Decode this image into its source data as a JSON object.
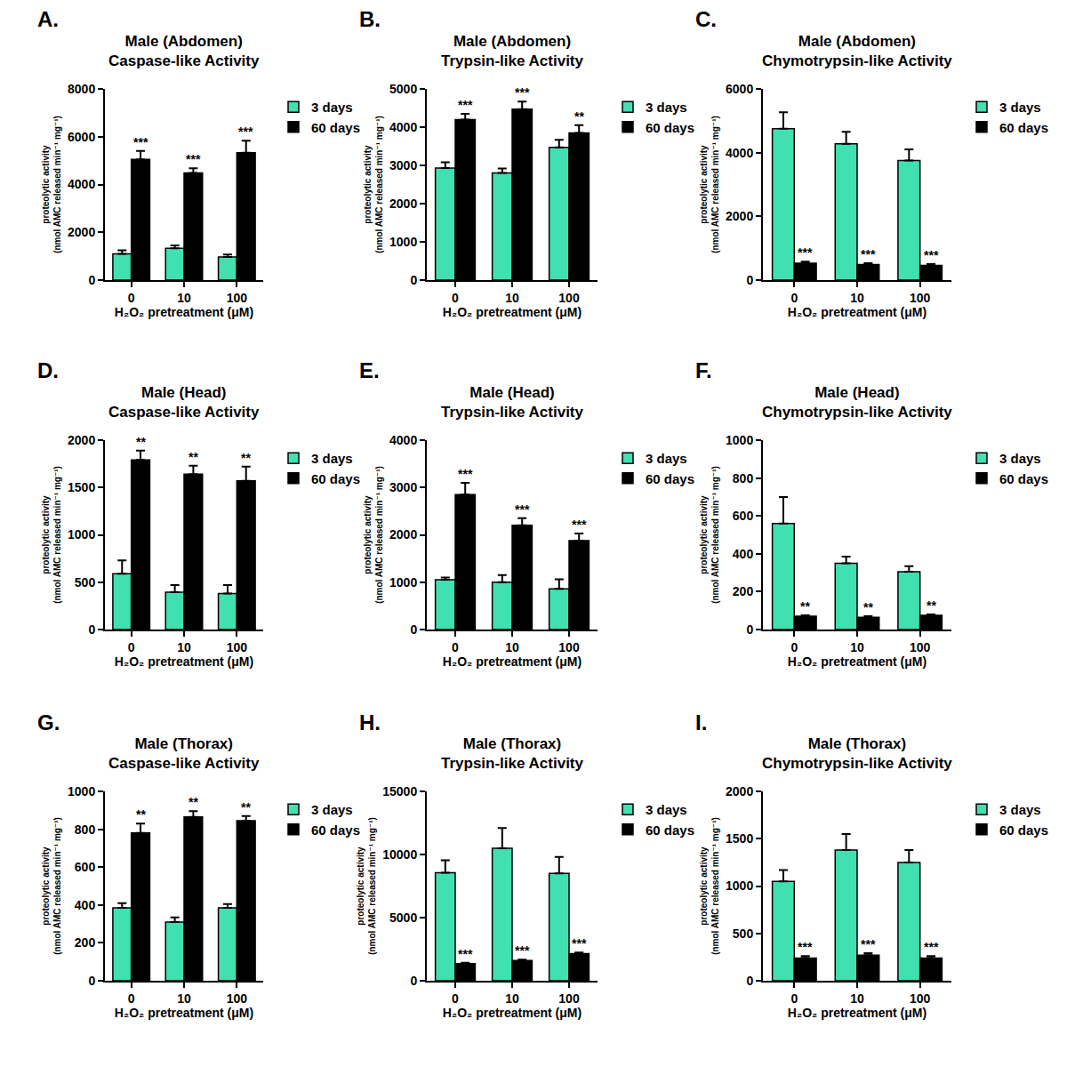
{
  "chart_data": [
    {
      "type": "bar",
      "label": "A.",
      "title": "Male (Abdomen)\nCaspase-like Activity",
      "xlabel": "H₂O₂ pretreatment (μM)",
      "ylabel": "proteolytic activity\n(nmol AMC released min⁻¹ mg⁻¹)",
      "categories": [
        "0",
        "10",
        "100"
      ],
      "series": [
        {
          "name": "3 days",
          "color": "#40e0b0",
          "values": [
            1100,
            1330,
            970
          ],
          "errors": [
            150,
            120,
            100
          ]
        },
        {
          "name": "60 days",
          "color": "#000000",
          "values": [
            5050,
            4480,
            5330
          ],
          "errors": [
            350,
            200,
            500
          ],
          "annotations": [
            "***",
            "***",
            "***"
          ]
        }
      ],
      "ylim": [
        0,
        8000
      ],
      "yticks": [
        0,
        2000,
        4000,
        6000,
        8000
      ],
      "legend": "right"
    },
    {
      "type": "bar",
      "label": "B.",
      "title": "Male (Abdomen)\nTrypsin-like Activity",
      "xlabel": "H₂O₂ pretreatment (μM)",
      "ylabel": "proteolytic activity\n(nmol AMC released min⁻¹ mg⁻¹)",
      "categories": [
        "0",
        "10",
        "100"
      ],
      "series": [
        {
          "name": "3 days",
          "color": "#40e0b0",
          "values": [
            2930,
            2800,
            3470
          ],
          "errors": [
            150,
            120,
            200
          ]
        },
        {
          "name": "60 days",
          "color": "#000000",
          "values": [
            4200,
            4470,
            3850
          ],
          "errors": [
            150,
            200,
            200
          ],
          "annotations": [
            "***",
            "***",
            "**"
          ]
        }
      ],
      "ylim": [
        0,
        5000
      ],
      "yticks": [
        0,
        1000,
        2000,
        3000,
        4000,
        5000
      ],
      "legend": "right"
    },
    {
      "type": "bar",
      "label": "C.",
      "title": "Male (Abdomen)\nChymotrypsin-like Activity",
      "xlabel": "H₂O₂ pretreatment (μM)",
      "ylabel": "proteolytic activity\n(nmol AMC released min⁻¹ mg⁻¹)",
      "categories": [
        "0",
        "10",
        "100"
      ],
      "series": [
        {
          "name": "3 days",
          "color": "#40e0b0",
          "values": [
            4750,
            4280,
            3750
          ],
          "errors": [
            520,
            370,
            350
          ]
        },
        {
          "name": "60 days",
          "color": "#000000",
          "values": [
            530,
            490,
            460
          ],
          "errors": [
            50,
            40,
            40
          ],
          "annotations": [
            "***",
            "***",
            "***"
          ]
        }
      ],
      "ylim": [
        0,
        6000
      ],
      "yticks": [
        0,
        2000,
        4000,
        6000
      ],
      "legend": "right"
    },
    {
      "type": "bar",
      "label": "D.",
      "title": "Male (Head)\nCaspase-like Activity",
      "xlabel": "H₂O₂ pretreatment (μM)",
      "ylabel": "proteolytic activity\n(nmol AMC released min⁻¹ mg⁻¹)",
      "categories": [
        "0",
        "10",
        "100"
      ],
      "series": [
        {
          "name": "3 days",
          "color": "#40e0b0",
          "values": [
            590,
            395,
            380
          ],
          "errors": [
            140,
            75,
            90
          ]
        },
        {
          "name": "60 days",
          "color": "#000000",
          "values": [
            1790,
            1640,
            1570
          ],
          "errors": [
            100,
            90,
            150
          ],
          "annotations": [
            "**",
            "**",
            "**"
          ]
        }
      ],
      "ylim": [
        0,
        2000
      ],
      "yticks": [
        0,
        500,
        1000,
        1500,
        2000
      ],
      "legend": "right"
    },
    {
      "type": "bar",
      "label": "E.",
      "title": "Male (Head)\nTrypsin-like Activity",
      "xlabel": "H₂O₂ pretreatment (μM)",
      "ylabel": "proteolytic activity\n(nmol AMC released min⁻¹ mg⁻¹)",
      "categories": [
        "0",
        "10",
        "100"
      ],
      "series": [
        {
          "name": "3 days",
          "color": "#40e0b0",
          "values": [
            1050,
            1000,
            860
          ],
          "errors": [
            50,
            150,
            200
          ]
        },
        {
          "name": "60 days",
          "color": "#000000",
          "values": [
            2850,
            2200,
            1880
          ],
          "errors": [
            250,
            150,
            150
          ],
          "annotations": [
            "***",
            "***",
            "***"
          ]
        }
      ],
      "ylim": [
        0,
        4000
      ],
      "yticks": [
        0,
        1000,
        2000,
        3000,
        4000
      ],
      "legend": "right"
    },
    {
      "type": "bar",
      "label": "F.",
      "title": "Male (Head)\nChymotrypsin-like Activity",
      "xlabel": "H₂O₂ pretreatment (μM)",
      "ylabel": "proteolytic activity\n(nmol AMC released min⁻¹ mg⁻¹)",
      "categories": [
        "0",
        "10",
        "100"
      ],
      "series": [
        {
          "name": "3 days",
          "color": "#40e0b0",
          "values": [
            560,
            350,
            305
          ],
          "errors": [
            140,
            35,
            30
          ]
        },
        {
          "name": "60 days",
          "color": "#000000",
          "values": [
            70,
            65,
            75
          ],
          "errors": [
            5,
            5,
            5
          ],
          "annotations": [
            "**",
            "**",
            "**"
          ]
        }
      ],
      "ylim": [
        0,
        1000
      ],
      "yticks": [
        0,
        200,
        400,
        600,
        800,
        1000
      ],
      "legend": "right"
    },
    {
      "type": "bar",
      "label": "G.",
      "title": "Male (Thorax)\nCaspase-like Activity",
      "xlabel": "H₂O₂ pretreatment (μM)",
      "ylabel": "proteolytic activity\n(nmol AMC released min⁻¹ mg⁻¹)",
      "categories": [
        "0",
        "10",
        "100"
      ],
      "series": [
        {
          "name": "3 days",
          "color": "#40e0b0",
          "values": [
            385,
            310,
            385
          ],
          "errors": [
            25,
            25,
            20
          ]
        },
        {
          "name": "60 days",
          "color": "#000000",
          "values": [
            780,
            865,
            845
          ],
          "errors": [
            50,
            30,
            25
          ],
          "annotations": [
            "**",
            "**",
            "**"
          ]
        }
      ],
      "ylim": [
        0,
        1000
      ],
      "yticks": [
        0,
        200,
        400,
        600,
        800,
        1000
      ],
      "legend": "right"
    },
    {
      "type": "bar",
      "label": "H.",
      "title": "Male (Thorax)\nTrypsin-like Activity",
      "xlabel": "H₂O₂ pretreatment (μM)",
      "ylabel": "proteolytic activity\n(nmol AMC released min⁻¹ mg⁻¹)",
      "categories": [
        "0",
        "10",
        "100"
      ],
      "series": [
        {
          "name": "3 days",
          "color": "#40e0b0",
          "values": [
            8550,
            10500,
            8500
          ],
          "errors": [
            1000,
            1600,
            1300
          ]
        },
        {
          "name": "60 days",
          "color": "#000000",
          "values": [
            1350,
            1600,
            2150
          ],
          "errors": [
            80,
            80,
            80
          ],
          "annotations": [
            "***",
            "***",
            "***"
          ]
        }
      ],
      "ylim": [
        0,
        15000
      ],
      "yticks": [
        0,
        5000,
        10000,
        15000
      ],
      "legend": "right"
    },
    {
      "type": "bar",
      "label": "I.",
      "title": "Male (Thorax)\nChymotrypsin-like Activity",
      "xlabel": "H₂O₂ pretreatment (μM)",
      "ylabel": "proteolytic activity\n(nmol AMC released min⁻¹ mg⁻¹)",
      "categories": [
        "0",
        "10",
        "100"
      ],
      "series": [
        {
          "name": "3 days",
          "color": "#40e0b0",
          "values": [
            1050,
            1380,
            1250
          ],
          "errors": [
            120,
            170,
            130
          ]
        },
        {
          "name": "60 days",
          "color": "#000000",
          "values": [
            240,
            270,
            240
          ],
          "errors": [
            20,
            20,
            20
          ],
          "annotations": [
            "***",
            "***",
            "***"
          ]
        }
      ],
      "ylim": [
        0,
        2000
      ],
      "yticks": [
        0,
        500,
        1000,
        1500,
        2000
      ],
      "legend": "right"
    }
  ]
}
